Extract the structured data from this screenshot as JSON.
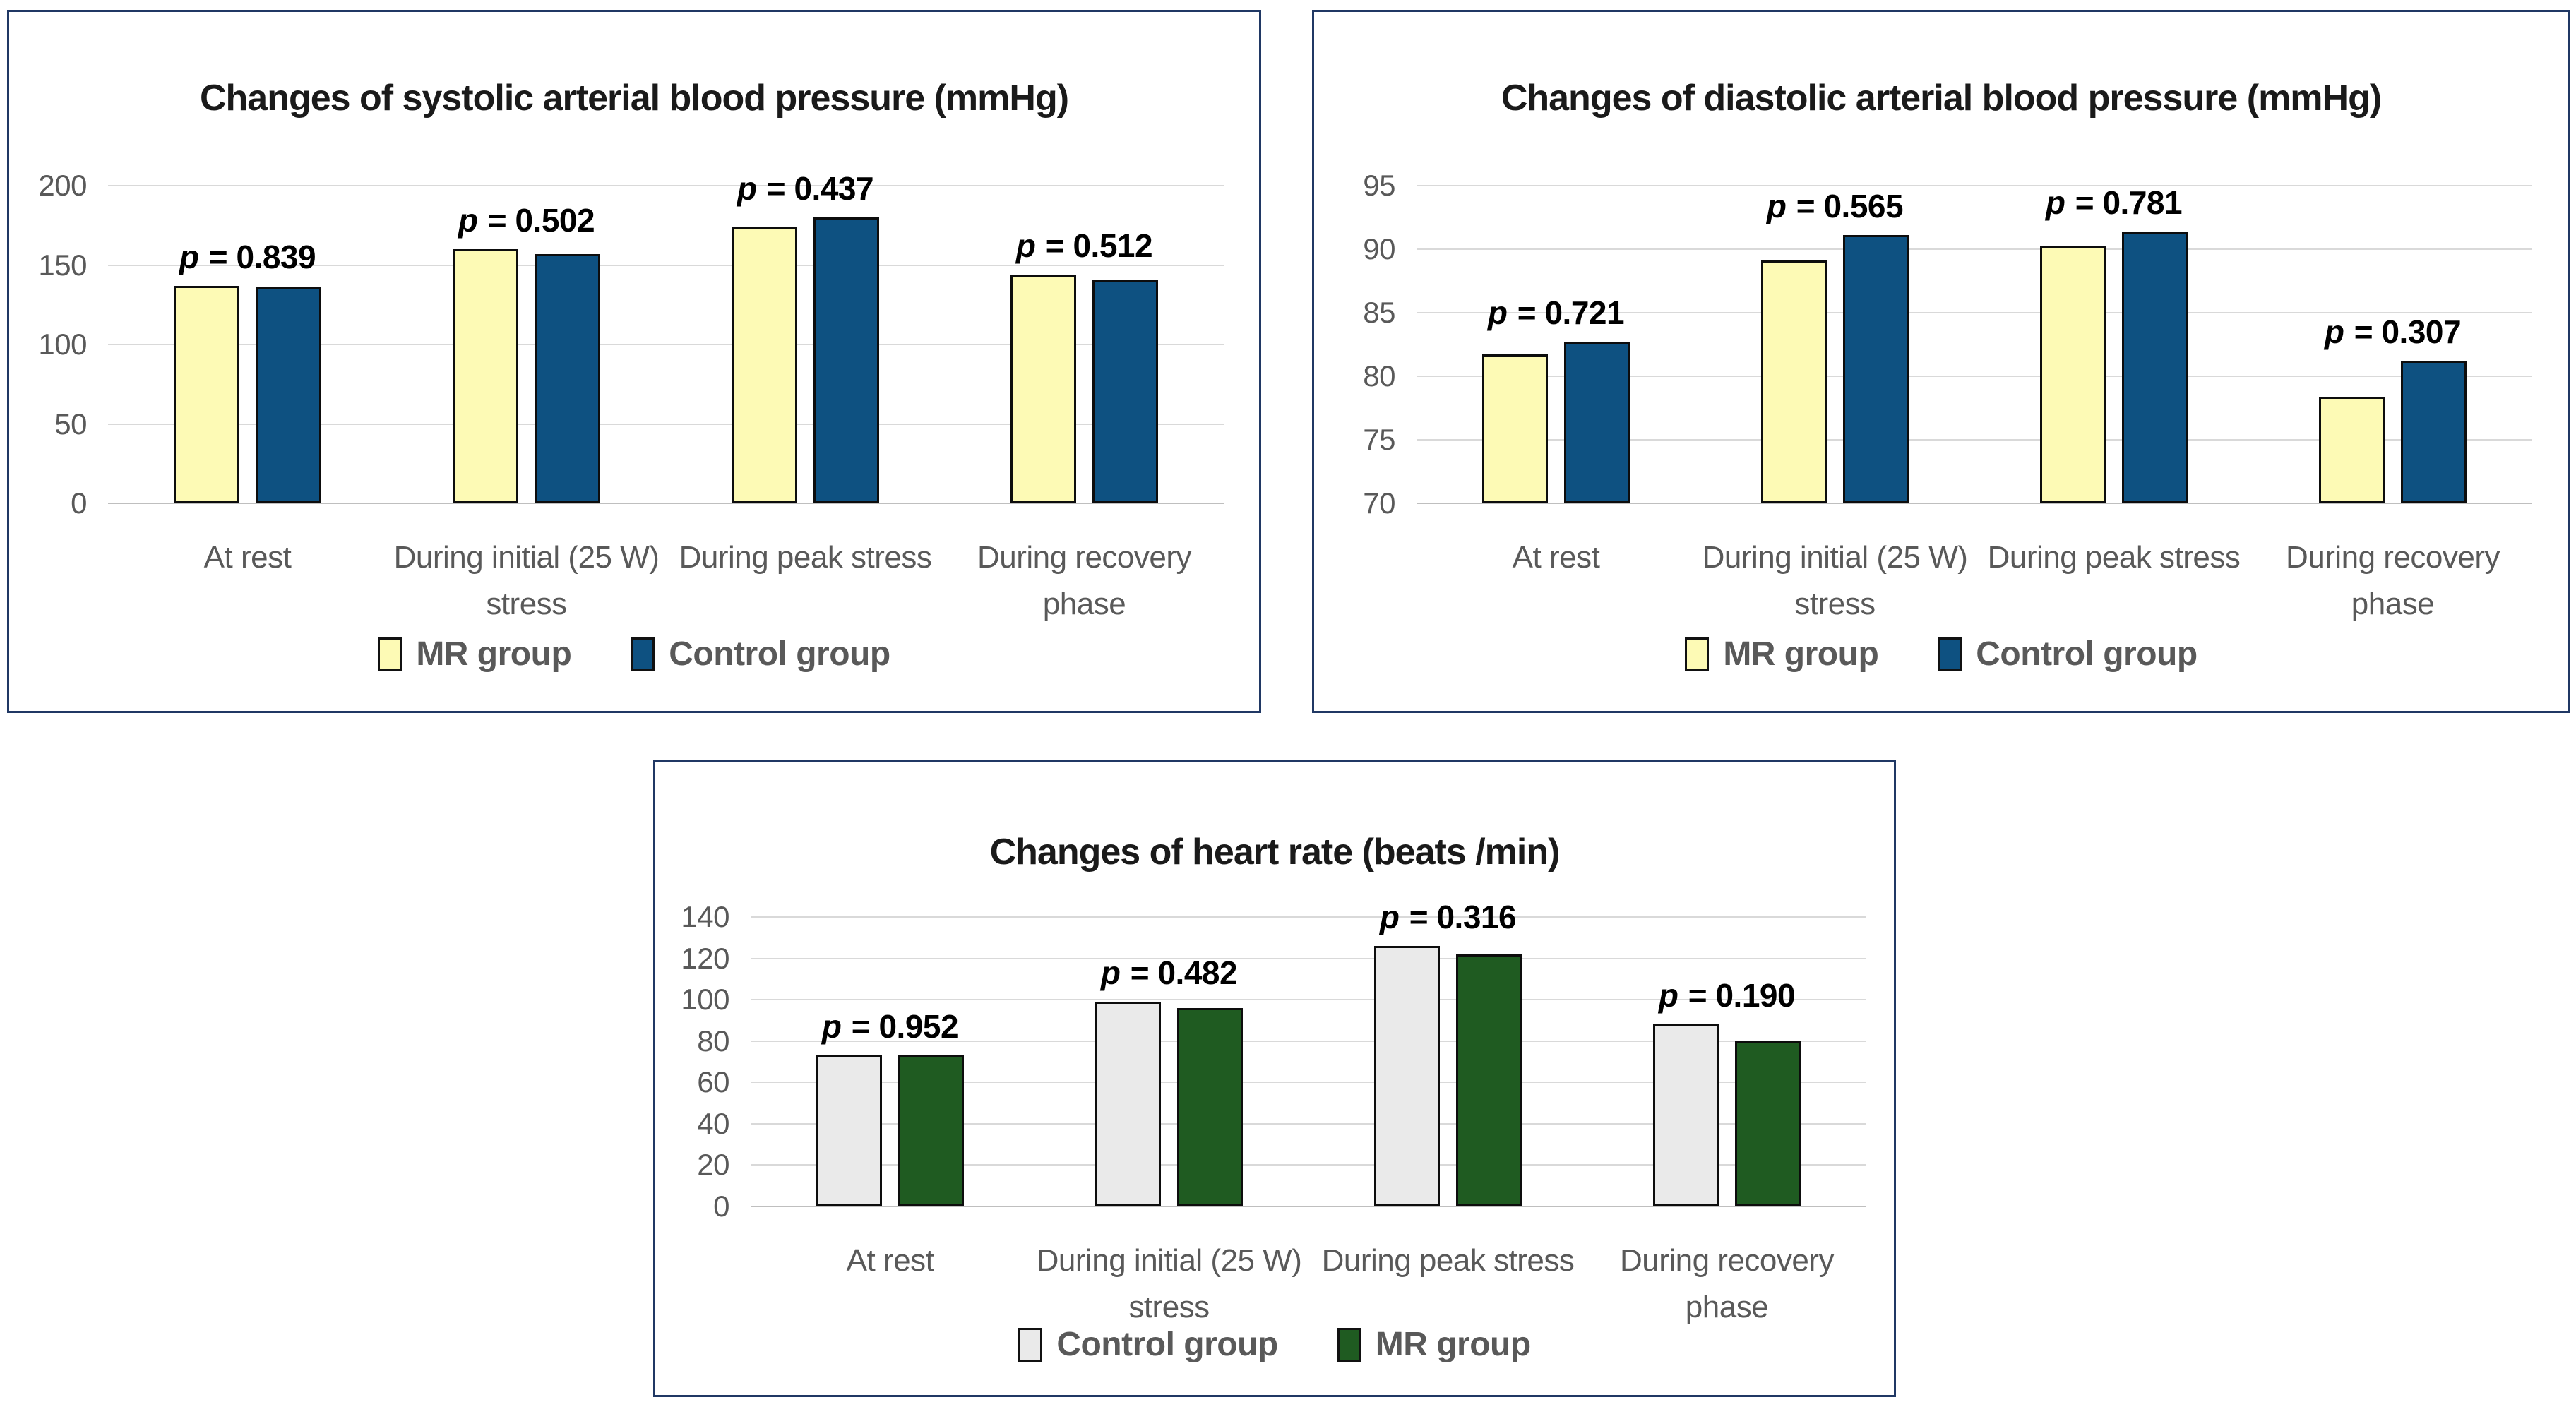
{
  "colors": {
    "page_background": "#FFFFFF",
    "chart_border": "#203864",
    "gridline": "#D9D9D9",
    "axis_baseline": "#BFBFBF",
    "bar_border": "#0D0D0D",
    "title_text": "#1A1A1A",
    "axis_label_text": "#595959",
    "p_value_text": "#000000",
    "mr_yellow": "#FDFAB5",
    "control_blue": "#0E5181",
    "control_gray": "#EAEAEA",
    "mr_green": "#1F5B21"
  },
  "chart_data": [
    {
      "type": "bar",
      "title": "Changes of systolic arterial blood pressure (mmHg)",
      "xlabel": "",
      "ylabel": "",
      "ylim": [
        0,
        200
      ],
      "yticks": [
        0,
        50,
        100,
        150,
        200
      ],
      "grid": true,
      "legend_position": "bottom",
      "categories": [
        "At rest",
        "During initial (25 W) stress",
        "During peak stress",
        "During recovery phase"
      ],
      "categories_lines": [
        [
          "At rest"
        ],
        [
          "During initial (25 W)",
          "stress"
        ],
        [
          "During peak stress"
        ],
        [
          "During recovery",
          "phase"
        ]
      ],
      "series": [
        {
          "name": "MR group",
          "color": "#FDFAB5",
          "values": [
            137,
            160,
            174,
            144
          ]
        },
        {
          "name": "Control group",
          "color": "#0E5181",
          "values": [
            136,
            157,
            180,
            141
          ]
        }
      ],
      "p_labels": [
        "p = 0.839",
        "p = 0.502",
        "p = 0.437",
        "p = 0.512"
      ]
    },
    {
      "type": "bar",
      "title": "Changes of diastolic arterial blood pressure (mmHg)",
      "xlabel": "",
      "ylabel": "",
      "ylim": [
        70,
        95
      ],
      "yticks": [
        70,
        75,
        80,
        85,
        90,
        95
      ],
      "grid": true,
      "legend_position": "bottom",
      "categories": [
        "At rest",
        "During initial (25 W) stress",
        "During peak stress",
        "During recovery phase"
      ],
      "categories_lines": [
        [
          "At rest"
        ],
        [
          "During initial (25 W)",
          "stress"
        ],
        [
          "During peak stress"
        ],
        [
          "During recovery",
          "phase"
        ]
      ],
      "series": [
        {
          "name": "MR group",
          "color": "#FDFAB5",
          "values": [
            81.7,
            89.1,
            90.3,
            78.4
          ]
        },
        {
          "name": "Control group",
          "color": "#0E5181",
          "values": [
            82.7,
            91.1,
            91.4,
            81.2
          ]
        }
      ],
      "p_labels": [
        "p = 0.721",
        "p = 0.565",
        "p = 0.781",
        "p = 0.307"
      ]
    },
    {
      "type": "bar",
      "title": "Changes of heart rate (beats /min)",
      "xlabel": "",
      "ylabel": "",
      "ylim": [
        0,
        140
      ],
      "yticks": [
        0,
        20,
        40,
        60,
        80,
        100,
        120,
        140
      ],
      "grid": true,
      "legend_position": "bottom",
      "categories": [
        "At rest",
        "During initial (25 W) stress",
        "During peak stress",
        "During recovery phase"
      ],
      "categories_lines": [
        [
          "At rest"
        ],
        [
          "During initial (25 W)",
          "stress"
        ],
        [
          "During peak stress"
        ],
        [
          "During recovery",
          "phase"
        ]
      ],
      "series": [
        {
          "name": "Control group",
          "color": "#EAEAEA",
          "values": [
            73,
            99,
            126,
            88
          ]
        },
        {
          "name": "MR group",
          "color": "#1F5B21",
          "values": [
            73,
            96,
            122,
            80
          ]
        }
      ],
      "p_labels": [
        "p = 0.952",
        "p = 0.482",
        "p = 0.316",
        "p = 0.190"
      ]
    }
  ]
}
